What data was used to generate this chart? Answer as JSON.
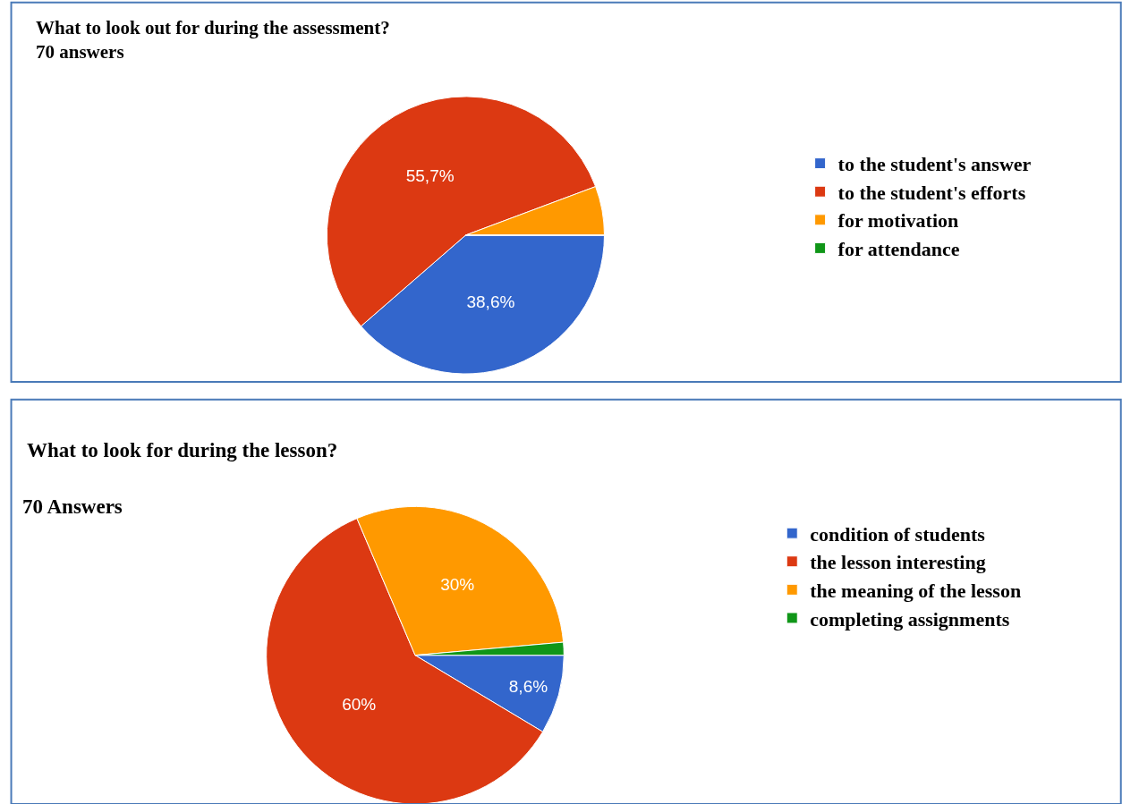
{
  "chart_data": [
    {
      "type": "pie",
      "title": "What to look out for during the assessment?",
      "subtitle": "70 answers",
      "categories": [
        "to the student's answer",
        "to the student's efforts",
        "for motivation",
        "for attendance"
      ],
      "values": [
        38.6,
        55.7,
        5.7,
        0
      ],
      "colors": [
        "#3366cc",
        "#dc3912",
        "#ff9900",
        "#109618"
      ],
      "value_labels": [
        "38,6%",
        "55,7%",
        null,
        null
      ],
      "legend": "right"
    },
    {
      "type": "pie",
      "title": "What to look for during the lesson?",
      "subtitle": "70 Answers",
      "categories": [
        "condition of students",
        "the lesson interesting",
        "the meaning of the lesson",
        "completing assignments"
      ],
      "values": [
        8.6,
        60,
        30,
        1.4
      ],
      "colors": [
        "#3366cc",
        "#dc3912",
        "#ff9900",
        "#109618"
      ],
      "value_labels": [
        "8,6%",
        "60%",
        "30%",
        null
      ],
      "legend": "right"
    }
  ]
}
